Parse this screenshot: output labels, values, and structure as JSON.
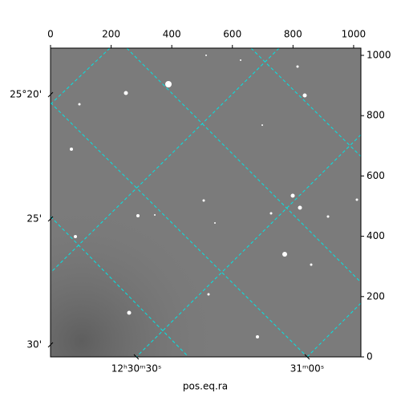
{
  "chart_data": {
    "type": "image",
    "xlabel": "pos.eq.ra",
    "xlim": [
      0,
      1024
    ],
    "xticks": [
      0,
      200,
      400,
      600,
      800,
      1000
    ],
    "ylim": [
      0,
      1024
    ],
    "yticks": [
      0,
      200,
      400,
      600,
      800,
      1000
    ],
    "ra_labels": [
      "12ʰ30ᵐ30ˢ",
      "31ᵐ00ˢ"
    ],
    "dec_labels": [
      "25°20'",
      "25'",
      "30'"
    ],
    "grid_color": "#00e5e5"
  }
}
